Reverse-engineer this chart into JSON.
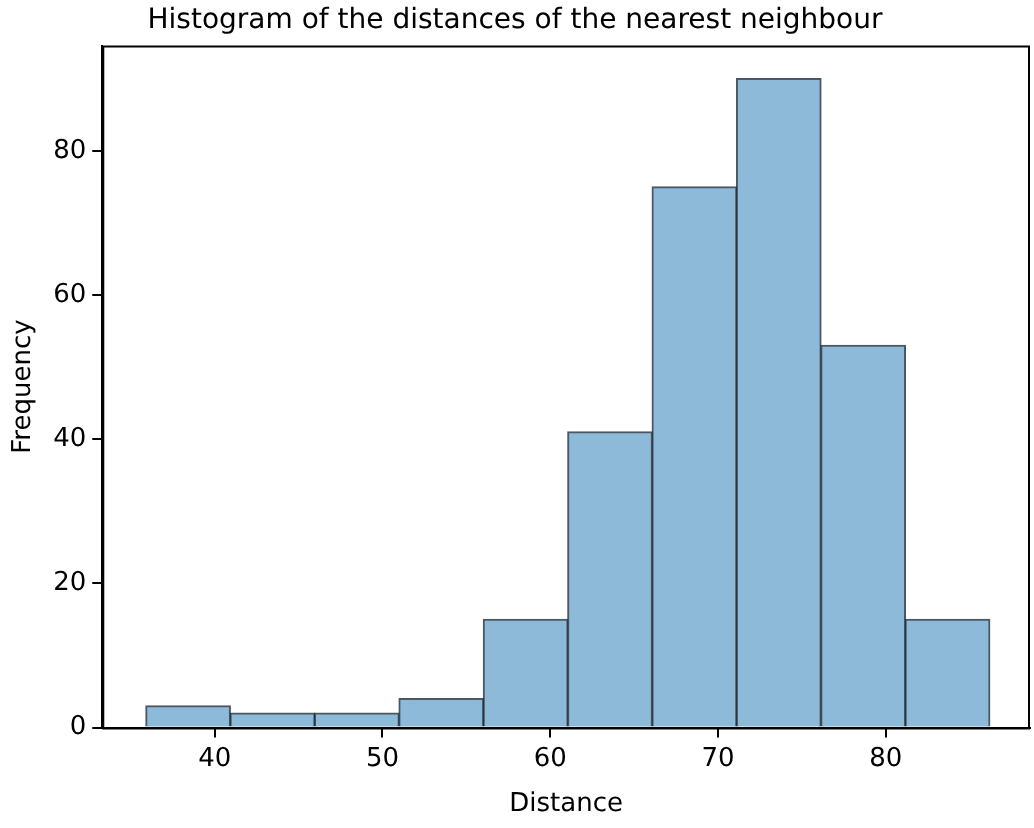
{
  "chart_data": {
    "type": "histogram",
    "title": "Histogram of the distances of the nearest neighbour",
    "xlabel": "Distance",
    "ylabel": "Frequency",
    "bins": [
      35.9,
      40.93,
      45.96,
      50.99,
      56.02,
      61.05,
      66.08,
      71.11,
      76.14,
      81.17,
      86.2
    ],
    "values": [
      3,
      2,
      2,
      4,
      15,
      41,
      75,
      90,
      53,
      15
    ],
    "color": "#8ebad9",
    "xlim": [
      33.3,
      88.6
    ],
    "xticks": [
      40,
      50,
      60,
      70,
      80
    ],
    "ylim": [
      0,
      94.6
    ],
    "yticks": [
      0,
      20,
      40,
      60,
      80
    ],
    "grid": false
  }
}
